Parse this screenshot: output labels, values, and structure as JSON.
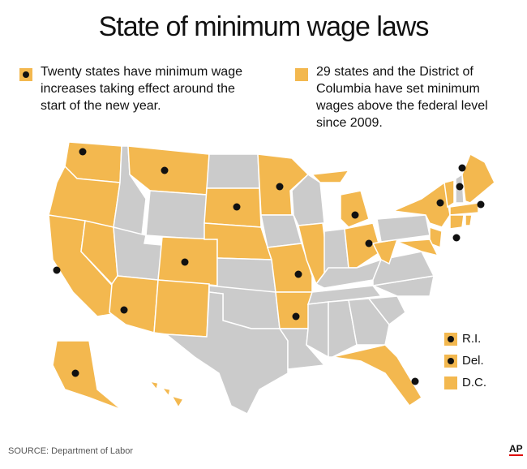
{
  "header": {
    "title": "State of minimum wage laws"
  },
  "legend": [
    {
      "text": "Twenty states have minimum wage increases taking effect around the start of the new year."
    },
    {
      "text": "29 states and the District of Columbia have set minimum wages above the federal level since 2009."
    }
  ],
  "small_legend": [
    "R.I.",
    "Del.",
    "D.C."
  ],
  "footer": {
    "source": "SOURCE: Department of Labor",
    "logo": "AP"
  }
}
